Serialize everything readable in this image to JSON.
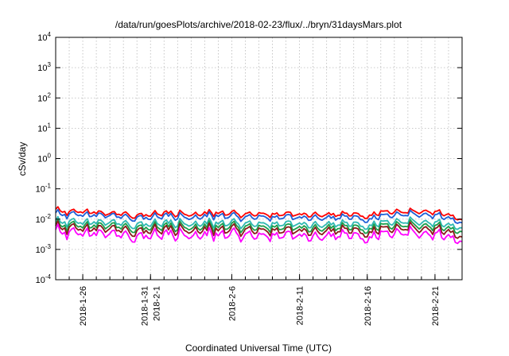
{
  "chart_data": {
    "type": "line",
    "title": "/data/run/goesPlots/archive/2018-02-23/flux/../bryn/31daysMars.plot",
    "xlabel": "Coordinated Universal Time (UTC)",
    "ylabel": "cSv/day",
    "yscale": "log",
    "ylim": [
      0.0001,
      10000
    ],
    "y_ticks": [
      {
        "value": 0.0001,
        "base": "10",
        "exp": "-4"
      },
      {
        "value": 0.001,
        "base": "10",
        "exp": "-3"
      },
      {
        "value": 0.01,
        "base": "10",
        "exp": "-2"
      },
      {
        "value": 0.1,
        "base": "10",
        "exp": "-1"
      },
      {
        "value": 1,
        "base": "10",
        "exp": "0"
      },
      {
        "value": 10,
        "base": "10",
        "exp": "1"
      },
      {
        "value": 100,
        "base": "10",
        "exp": "2"
      },
      {
        "value": 1000,
        "base": "10",
        "exp": "3"
      },
      {
        "value": 10000,
        "base": "10",
        "exp": "4"
      }
    ],
    "xlim": [
      "2018-01-24",
      "2018-02-23"
    ],
    "x_ticks": [
      {
        "date": "2018-01-26",
        "lines": [
          "2018-1-26"
        ]
      },
      {
        "date": "2018-01-31",
        "lines": [
          "2018-1-31",
          "2018-2-1"
        ]
      },
      {
        "date": "2018-02-06",
        "lines": [
          "2018-2-6"
        ]
      },
      {
        "date": "2018-02-11",
        "lines": [
          "2018-2-11"
        ]
      },
      {
        "date": "2018-02-16",
        "lines": [
          "2018-2-16"
        ]
      },
      {
        "date": "2018-02-21",
        "lines": [
          "2018-2-21"
        ]
      }
    ],
    "x_grid_dates": [
      "2018-01-25",
      "2018-01-26",
      "2018-01-27",
      "2018-01-28",
      "2018-01-29",
      "2018-01-30",
      "2018-01-31",
      "2018-02-01",
      "2018-02-02",
      "2018-02-03",
      "2018-02-04",
      "2018-02-05",
      "2018-02-06",
      "2018-02-07",
      "2018-02-08",
      "2018-02-09",
      "2018-02-10",
      "2018-02-11",
      "2018-02-12",
      "2018-02-13",
      "2018-02-14",
      "2018-02-15",
      "2018-02-16",
      "2018-02-17",
      "2018-02-18",
      "2018-02-19",
      "2018-02-20",
      "2018-02-21",
      "2018-02-22"
    ],
    "grid": true,
    "x": [
      "2018-01-24",
      "2018-01-25",
      "2018-01-26",
      "2018-01-27",
      "2018-01-28",
      "2018-01-29",
      "2018-01-30",
      "2018-01-31",
      "2018-02-01",
      "2018-02-02",
      "2018-02-03",
      "2018-02-04",
      "2018-02-05",
      "2018-02-06",
      "2018-02-07",
      "2018-02-08",
      "2018-02-09",
      "2018-02-10",
      "2018-02-11",
      "2018-02-12",
      "2018-02-13",
      "2018-02-14",
      "2018-02-15",
      "2018-02-16",
      "2018-02-17",
      "2018-02-18",
      "2018-02-19",
      "2018-02-20",
      "2018-02-21",
      "2018-02-22",
      "2018-02-23"
    ],
    "series": [
      {
        "color": "#ff0000",
        "values": [
          0.021,
          0.017,
          0.019,
          0.016,
          0.014,
          0.015,
          0.013,
          0.014,
          0.016,
          0.015,
          0.014,
          0.015,
          0.016,
          0.015,
          0.014,
          0.015,
          0.014,
          0.015,
          0.014,
          0.015,
          0.014,
          0.014,
          0.014,
          0.013,
          0.016,
          0.018,
          0.017,
          0.019,
          0.018,
          0.014,
          0.01
        ]
      },
      {
        "color": "#1f5fd6",
        "values": [
          0.016,
          0.014,
          0.015,
          0.013,
          0.012,
          0.012,
          0.011,
          0.011,
          0.013,
          0.012,
          0.011,
          0.012,
          0.013,
          0.012,
          0.011,
          0.012,
          0.011,
          0.012,
          0.011,
          0.012,
          0.011,
          0.011,
          0.011,
          0.01,
          0.012,
          0.014,
          0.014,
          0.015,
          0.014,
          0.011,
          0.008
        ]
      },
      {
        "color": "#2eb9b3",
        "values": [
          0.009,
          0.008,
          0.0085,
          0.0075,
          0.007,
          0.0072,
          0.0065,
          0.0068,
          0.0075,
          0.0072,
          0.0068,
          0.007,
          0.0074,
          0.0071,
          0.0067,
          0.007,
          0.0068,
          0.0071,
          0.0068,
          0.007,
          0.0067,
          0.0067,
          0.0066,
          0.0062,
          0.0072,
          0.0082,
          0.008,
          0.0085,
          0.008,
          0.0066,
          0.0055
        ]
      },
      {
        "color": "#1a9e4a",
        "values": [
          0.007,
          0.0062,
          0.0066,
          0.0058,
          0.0054,
          0.0056,
          0.005,
          0.0052,
          0.0058,
          0.0056,
          0.0052,
          0.0054,
          0.0057,
          0.0055,
          0.0052,
          0.0054,
          0.0052,
          0.0055,
          0.0052,
          0.0054,
          0.0052,
          0.0052,
          0.0051,
          0.0048,
          0.0056,
          0.0063,
          0.0062,
          0.0066,
          0.0062,
          0.0051,
          0.0042
        ]
      },
      {
        "color": "#8b1a1a",
        "values": [
          0.006,
          0.005,
          0.0053,
          0.0046,
          0.0042,
          0.0044,
          0.0039,
          0.0041,
          0.0046,
          0.0044,
          0.0041,
          0.0043,
          0.0045,
          0.0043,
          0.0041,
          0.0043,
          0.0041,
          0.0043,
          0.0041,
          0.0043,
          0.0041,
          0.0041,
          0.004,
          0.0037,
          0.0044,
          0.005,
          0.0049,
          0.0052,
          0.0049,
          0.004,
          0.0028
        ]
      },
      {
        "color": "#ff00ff",
        "values": [
          0.0045,
          0.0035,
          0.0038,
          0.0032,
          0.0028,
          0.003,
          0.0026,
          0.0028,
          0.0032,
          0.003,
          0.0028,
          0.0029,
          0.0031,
          0.003,
          0.0028,
          0.0029,
          0.0028,
          0.003,
          0.0028,
          0.0029,
          0.0028,
          0.0028,
          0.0027,
          0.0025,
          0.003,
          0.0035,
          0.0034,
          0.0036,
          0.0034,
          0.0027,
          0.002
        ]
      }
    ]
  }
}
